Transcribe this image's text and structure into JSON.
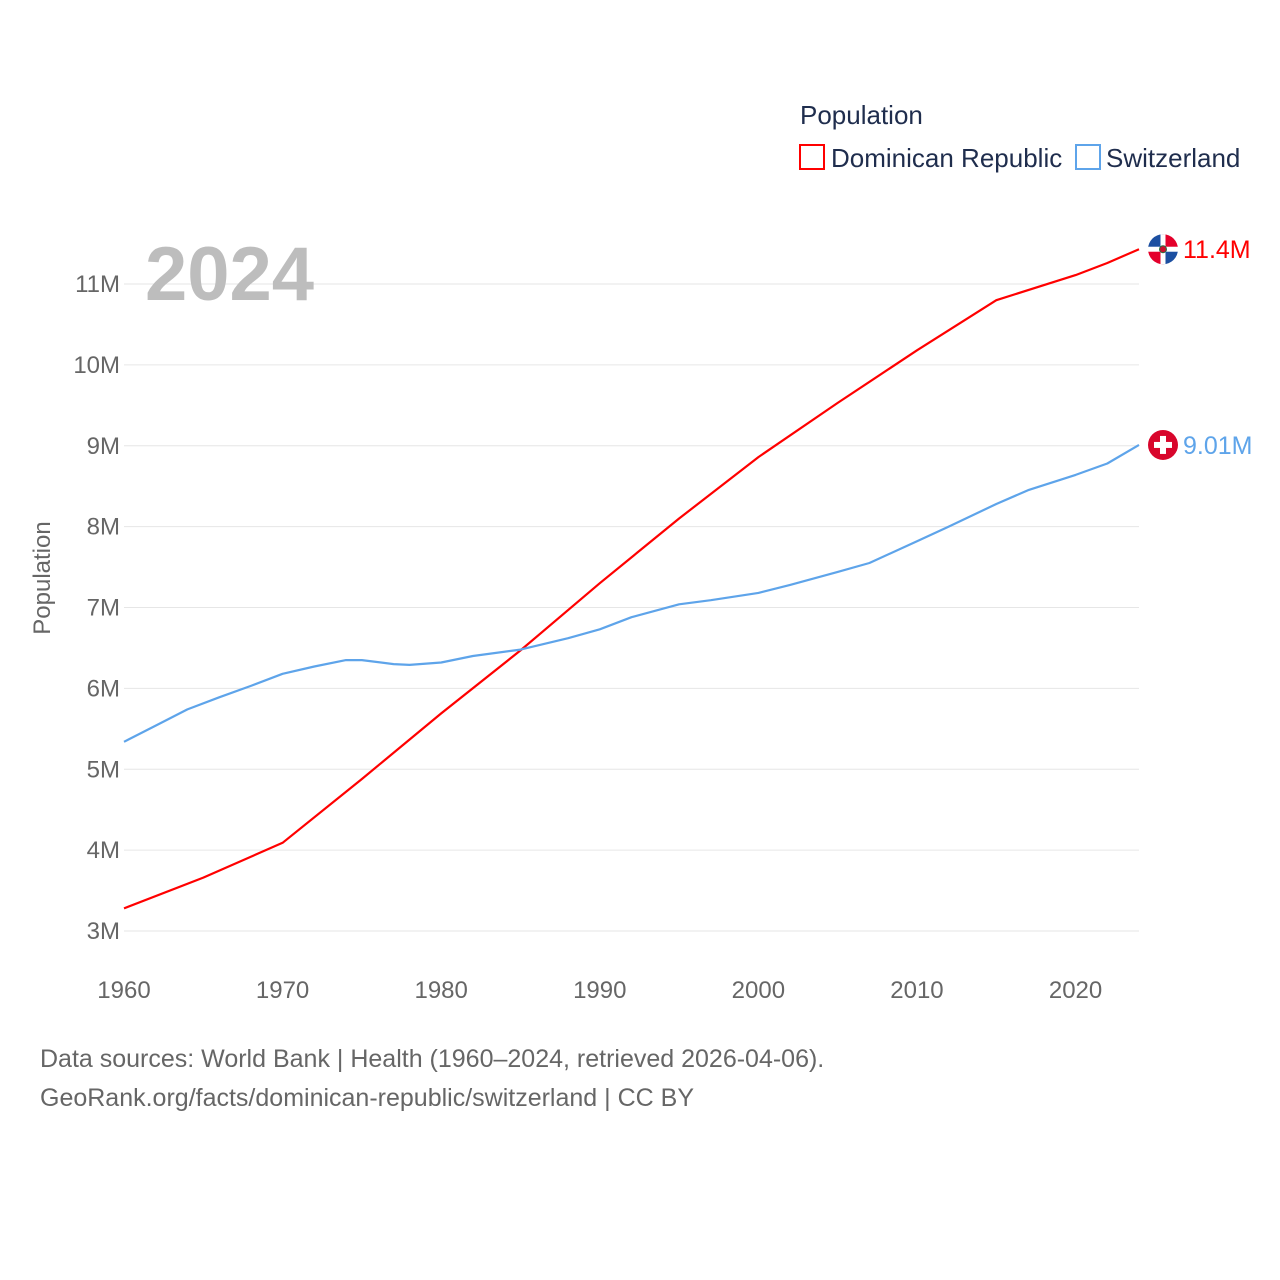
{
  "chart_data": {
    "type": "line",
    "title": "Population",
    "ylabel": "Population",
    "xlabel": "",
    "year_label": "2024",
    "xlim": [
      1960,
      2024
    ],
    "ylim": [
      3000000,
      11500000
    ],
    "x_ticks": [
      1960,
      1970,
      1980,
      1990,
      2000,
      2010,
      2020
    ],
    "x_tick_labels": [
      "1960",
      "1970",
      "1980",
      "1990",
      "2000",
      "2010",
      "2020"
    ],
    "y_ticks": [
      3000000,
      4000000,
      5000000,
      6000000,
      7000000,
      8000000,
      9000000,
      10000000,
      11000000
    ],
    "y_tick_labels": [
      "3M",
      "4M",
      "5M",
      "6M",
      "7M",
      "8M",
      "9M",
      "10M",
      "11M"
    ],
    "grid": true,
    "legend_placement": "top-right",
    "series": [
      {
        "name": "Dominican Republic",
        "color": "#ff0000",
        "end_label": "11.4M",
        "flag": "dominican-republic-flag",
        "x": [
          1960,
          1965,
          1970,
          1975,
          1980,
          1985,
          1990,
          1995,
          2000,
          2005,
          2010,
          2015,
          2020,
          2022,
          2024
        ],
        "values": [
          3280000,
          3660000,
          4090000,
          4880000,
          5690000,
          6470000,
          7300000,
          8100000,
          8860000,
          9530000,
          10180000,
          10800000,
          11110000,
          11260000,
          11430000
        ]
      },
      {
        "name": "Switzerland",
        "color": "#5ea4ea",
        "end_label": "9.01M",
        "flag": "switzerland-flag",
        "x": [
          1960,
          1962,
          1964,
          1966,
          1968,
          1970,
          1972,
          1974,
          1975,
          1977,
          1978,
          1980,
          1982,
          1985,
          1988,
          1990,
          1992,
          1995,
          1997,
          2000,
          2002,
          2005,
          2007,
          2010,
          2012,
          2015,
          2017,
          2020,
          2022,
          2024
        ],
        "values": [
          5340000,
          5540000,
          5740000,
          5890000,
          6030000,
          6180000,
          6270000,
          6350000,
          6350000,
          6300000,
          6290000,
          6320000,
          6400000,
          6480000,
          6620000,
          6730000,
          6880000,
          7040000,
          7090000,
          7180000,
          7280000,
          7440000,
          7550000,
          7820000,
          8000000,
          8280000,
          8450000,
          8640000,
          8780000,
          9010000
        ]
      }
    ]
  },
  "footer": {
    "line1": "Data sources: World Bank | Health (1960–2024, retrieved 2026-04-06).",
    "line2": "GeoRank.org/facts/dominican-republic/switzerland | CC BY"
  }
}
